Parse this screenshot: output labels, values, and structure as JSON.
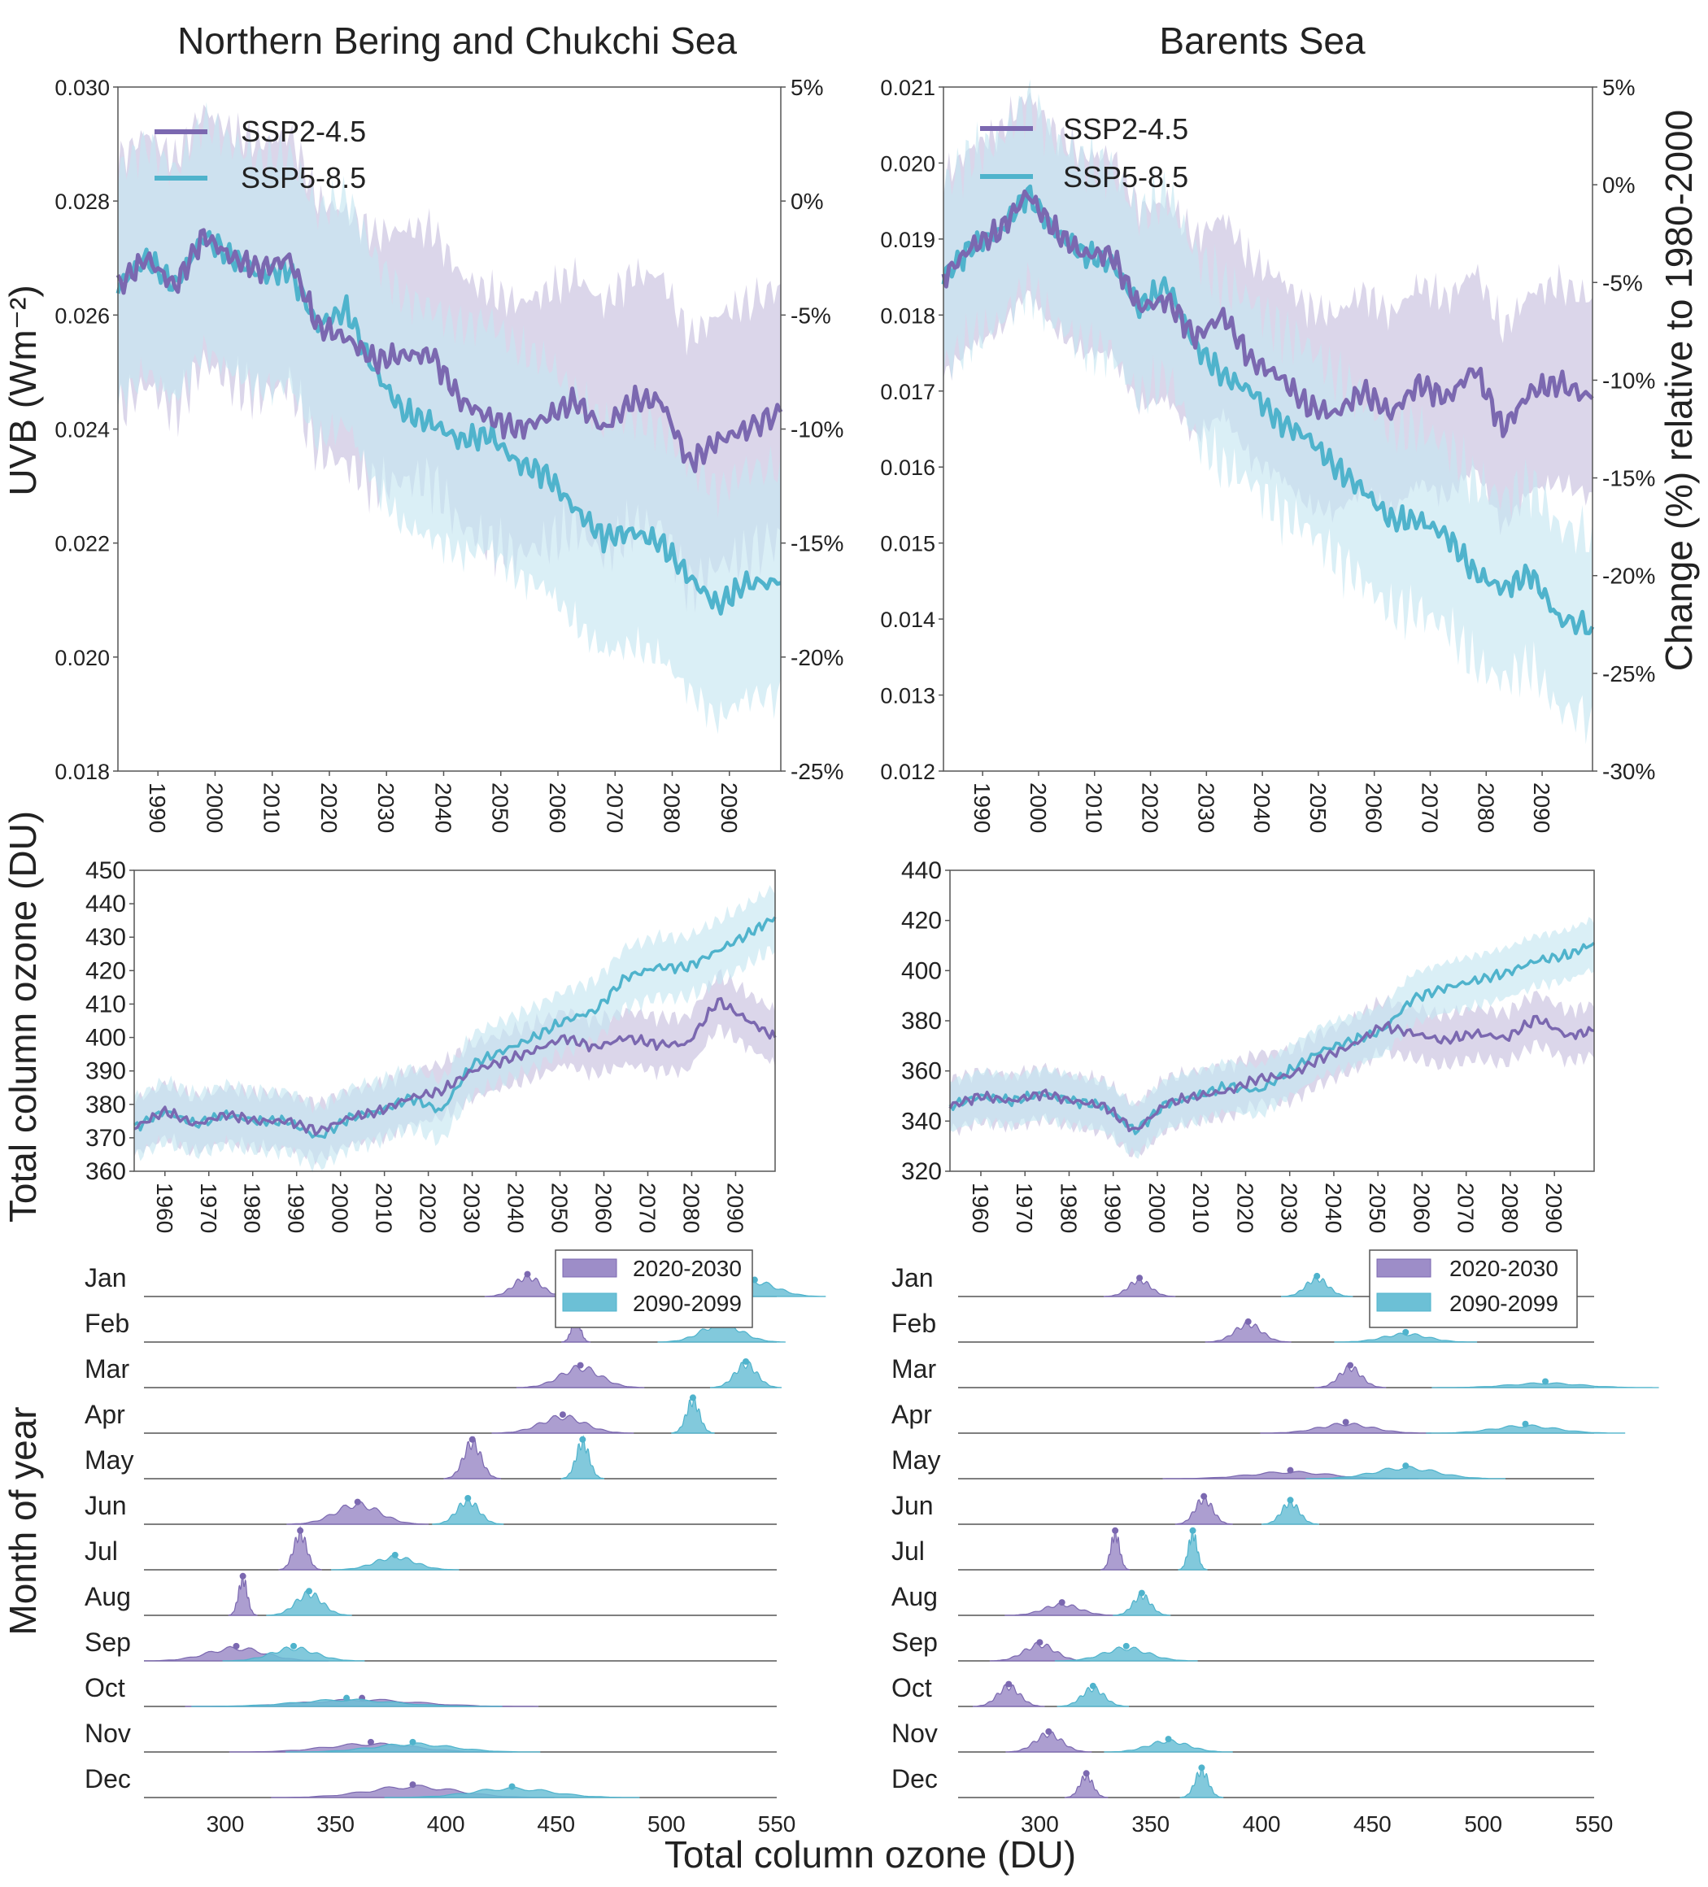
{
  "colors": {
    "ssp245": "#7b68b0",
    "ssp585": "#4fb3cc",
    "ssp245_band": "#c7c0de",
    "ssp585_band": "#c6e6f1",
    "ridge_2020": "#9d8dc8",
    "ridge_2090": "#6cc0d6",
    "axis": "#555555"
  },
  "text": {
    "left_title": "Northern Bering and Chukchi Sea",
    "right_title": "Barents Sea",
    "uvb_label": "UVB (Wm⁻²)",
    "change_label": "Change (%) relative to 1980-2000",
    "ozone_label": "Total column ozone (DU)",
    "month_label": "Month  of year",
    "bottom_xlabel": "Total column ozone (DU)",
    "legend_ssp245": "SSP2-4.5",
    "legend_ssp585": "SSP5-8.5",
    "legend_2020": "2020-2030",
    "legend_2090": "2090-2099"
  },
  "chart_data": [
    {
      "id": "uvb_bering",
      "type": "line",
      "title": "Northern Bering and Chukchi Sea",
      "ylabel": "UVB (Wm⁻²)",
      "xlim": [
        1983,
        2099
      ],
      "ylim": [
        0.018,
        0.03
      ],
      "xticks": [
        1990,
        2000,
        2010,
        2020,
        2030,
        2040,
        2050,
        2060,
        2070,
        2080,
        2090
      ],
      "yticks": [
        "0.018",
        "0.020",
        "0.022",
        "0.024",
        "0.026",
        "0.028",
        "0.030"
      ],
      "right_yticks": [
        "-25%",
        "-20%",
        "-15%",
        "-10%",
        "-5%",
        "0%",
        "5%"
      ],
      "series": [
        {
          "name": "SSP2-4.5",
          "x": [
            1983,
            1988,
            1993,
            1998,
            2003,
            2008,
            2013,
            2018,
            2023,
            2028,
            2033,
            2038,
            2043,
            2048,
            2053,
            2058,
            2063,
            2068,
            2073,
            2078,
            2083,
            2088,
            2093,
            2099
          ],
          "y": [
            0.0265,
            0.027,
            0.0265,
            0.0274,
            0.027,
            0.0268,
            0.027,
            0.0258,
            0.0256,
            0.0252,
            0.0253,
            0.0253,
            0.0245,
            0.0242,
            0.024,
            0.0242,
            0.0245,
            0.024,
            0.0245,
            0.0245,
            0.0234,
            0.0238,
            0.024,
            0.0243
          ],
          "band": 0.0022
        },
        {
          "name": "SSP5-8.5",
          "x": [
            1983,
            1988,
            1993,
            1998,
            2003,
            2008,
            2013,
            2018,
            2023,
            2028,
            2033,
            2038,
            2043,
            2048,
            2053,
            2058,
            2063,
            2068,
            2073,
            2078,
            2083,
            2088,
            2093,
            2099
          ],
          "y": [
            0.0265,
            0.027,
            0.0265,
            0.0274,
            0.027,
            0.0267,
            0.0268,
            0.0258,
            0.0261,
            0.025,
            0.0243,
            0.0241,
            0.0238,
            0.0239,
            0.0234,
            0.0232,
            0.0226,
            0.0221,
            0.0222,
            0.022,
            0.0214,
            0.0209,
            0.0213,
            0.0213
          ],
          "band": 0.002
        }
      ]
    },
    {
      "id": "uvb_barents",
      "type": "line",
      "title": "Barents Sea",
      "ylabel": "Change (%) relative to 1980-2000",
      "xlim": [
        1983,
        2099
      ],
      "ylim": [
        0.012,
        0.021
      ],
      "xticks": [
        1990,
        2000,
        2010,
        2020,
        2030,
        2040,
        2050,
        2060,
        2070,
        2080,
        2090
      ],
      "yticks": [
        "0.012",
        "0.013",
        "0.014",
        "0.015",
        "0.016",
        "0.017",
        "0.018",
        "0.019",
        "0.020",
        "0.021"
      ],
      "right_yticks": [
        "-30%",
        "-25%",
        "-20%",
        "-15%",
        "-10%",
        "-5%",
        "0%",
        "5%"
      ],
      "series": [
        {
          "name": "SSP2-4.5",
          "x": [
            1983,
            1988,
            1993,
            1998,
            2003,
            2008,
            2013,
            2018,
            2023,
            2028,
            2033,
            2038,
            2043,
            2048,
            2053,
            2058,
            2063,
            2068,
            2073,
            2078,
            2083,
            2088,
            2093,
            2099
          ],
          "y": [
            0.0185,
            0.0189,
            0.0191,
            0.0196,
            0.0191,
            0.0188,
            0.0188,
            0.0181,
            0.0182,
            0.0177,
            0.018,
            0.0174,
            0.0172,
            0.0168,
            0.0167,
            0.017,
            0.0167,
            0.0171,
            0.0169,
            0.0173,
            0.0165,
            0.017,
            0.0171,
            0.0169
          ],
          "band": 0.0013
        },
        {
          "name": "SSP5-8.5",
          "x": [
            1983,
            1988,
            1993,
            1998,
            2003,
            2008,
            2013,
            2018,
            2023,
            2028,
            2033,
            2038,
            2043,
            2048,
            2053,
            2058,
            2063,
            2068,
            2073,
            2078,
            2083,
            2088,
            2093,
            2099
          ],
          "y": [
            0.0185,
            0.0189,
            0.0191,
            0.0196,
            0.0191,
            0.0188,
            0.0187,
            0.0181,
            0.0184,
            0.0176,
            0.0172,
            0.017,
            0.0166,
            0.0164,
            0.016,
            0.0157,
            0.0153,
            0.0153,
            0.0151,
            0.0146,
            0.0144,
            0.0146,
            0.014,
            0.0139
          ],
          "band": 0.0012
        }
      ]
    },
    {
      "id": "ozone_bering",
      "type": "line",
      "ylabel": "Total column ozone (DU)",
      "xlim": [
        1953,
        2099
      ],
      "ylim": [
        360,
        450
      ],
      "xticks": [
        1960,
        1970,
        1980,
        1990,
        2000,
        2010,
        2020,
        2030,
        2040,
        2050,
        2060,
        2070,
        2080,
        2090
      ],
      "yticks": [
        360,
        370,
        380,
        390,
        400,
        410,
        420,
        430,
        440,
        450
      ],
      "series": [
        {
          "name": "SSP2-4.5",
          "x": [
            1953,
            1960,
            1967,
            1974,
            1981,
            1988,
            1995,
            2002,
            2009,
            2016,
            2023,
            2030,
            2037,
            2044,
            2051,
            2058,
            2065,
            2072,
            2079,
            2086,
            2093,
            2099
          ],
          "y": [
            373,
            378,
            374,
            377,
            375,
            375,
            372,
            376,
            378,
            382,
            384,
            390,
            393,
            396,
            400,
            397,
            400,
            398,
            398,
            411,
            405,
            400
          ],
          "band": 8
        },
        {
          "name": "SSP5-8.5",
          "x": [
            1953,
            1960,
            1967,
            1974,
            1981,
            1988,
            1995,
            2002,
            2009,
            2016,
            2023,
            2030,
            2037,
            2044,
            2051,
            2058,
            2065,
            2072,
            2079,
            2086,
            2093,
            2099
          ],
          "y": [
            373,
            378,
            374,
            377,
            375,
            375,
            370,
            376,
            378,
            382,
            378,
            392,
            396,
            400,
            405,
            408,
            418,
            421,
            421,
            426,
            431,
            436
          ],
          "band": 9
        }
      ]
    },
    {
      "id": "ozone_barents",
      "type": "line",
      "xlim": [
        1953,
        2099
      ],
      "ylim": [
        320,
        440
      ],
      "xticks": [
        1960,
        1970,
        1980,
        1990,
        2000,
        2010,
        2020,
        2030,
        2040,
        2050,
        2060,
        2070,
        2080,
        2090
      ],
      "yticks": [
        320,
        340,
        360,
        380,
        400,
        420,
        440
      ],
      "series": [
        {
          "name": "SSP2-4.5",
          "x": [
            1953,
            1960,
            1967,
            1974,
            1981,
            1988,
            1995,
            2002,
            2009,
            2016,
            2023,
            2030,
            2037,
            2044,
            2051,
            2058,
            2065,
            2072,
            2079,
            2086,
            2093,
            2099
          ],
          "y": [
            346,
            350,
            348,
            351,
            348,
            346,
            336,
            347,
            350,
            352,
            357,
            358,
            365,
            370,
            378,
            375,
            372,
            375,
            373,
            381,
            374,
            376
          ],
          "band": 10
        },
        {
          "name": "SSP5-8.5",
          "x": [
            1953,
            1960,
            1967,
            1974,
            1981,
            1988,
            1995,
            2002,
            2009,
            2016,
            2023,
            2030,
            2037,
            2044,
            2051,
            2058,
            2065,
            2072,
            2079,
            2086,
            2093,
            2099
          ],
          "y": [
            346,
            350,
            348,
            351,
            348,
            346,
            336,
            347,
            350,
            354,
            352,
            360,
            368,
            372,
            376,
            389,
            393,
            396,
            399,
            404,
            406,
            411
          ],
          "band": 10
        }
      ]
    },
    {
      "id": "ridge_bering",
      "type": "area",
      "xlim": [
        265,
        550
      ],
      "xticks": [
        300,
        350,
        400,
        450,
        500,
        550
      ],
      "months": [
        "Jan",
        "Feb",
        "Mar",
        "Apr",
        "May",
        "Jun",
        "Jul",
        "Aug",
        "Sep",
        "Oct",
        "Nov",
        "Dec"
      ],
      "series": [
        {
          "name": "2020-2030",
          "peaks": [
            437,
            459,
            461,
            453,
            412,
            360,
            334,
            308,
            305,
            362,
            366,
            385
          ],
          "widths": [
            6,
            2,
            9,
            10,
            4,
            10,
            3,
            2,
            13,
            25,
            20,
            20
          ],
          "heights": [
            0.55,
            0.65,
            0.55,
            0.45,
            1.0,
            0.55,
            1.0,
            1.0,
            0.35,
            0.18,
            0.22,
            0.3
          ]
        },
        {
          "name": "2090-2099",
          "peaks": [
            540,
            525,
            536,
            512,
            462,
            410,
            377,
            338,
            331,
            355,
            385,
            430
          ],
          "widths": [
            10,
            9,
            5,
            3,
            3,
            5,
            9,
            6,
            10,
            22,
            18,
            18
          ],
          "heights": [
            0.4,
            0.5,
            0.65,
            0.9,
            1.0,
            0.65,
            0.35,
            0.6,
            0.35,
            0.18,
            0.22,
            0.25
          ]
        }
      ]
    },
    {
      "id": "ridge_barents",
      "type": "area",
      "xlim": [
        265,
        550
      ],
      "xticks": [
        300,
        350,
        400,
        450,
        500,
        550
      ],
      "months": [
        "Jan",
        "Feb",
        "Mar",
        "Apr",
        "May",
        "Jun",
        "Jul",
        "Aug",
        "Sep",
        "Oct",
        "Nov",
        "Dec"
      ],
      "series": [
        {
          "name": "2020-2030",
          "peaks": [
            345,
            394,
            440,
            438,
            413,
            374,
            334,
            310,
            300,
            286,
            304,
            321
          ],
          "widths": [
            5,
            6,
            5,
            12,
            18,
            4,
            2,
            8,
            7,
            5,
            6,
            3
          ],
          "heights": [
            0.45,
            0.5,
            0.55,
            0.25,
            0.18,
            0.7,
            1.0,
            0.3,
            0.45,
            0.55,
            0.5,
            0.6
          ]
        },
        {
          "name": "2090-2099",
          "peaks": [
            425,
            465,
            528,
            519,
            465,
            413,
            369,
            346,
            339,
            324,
            358,
            373
          ],
          "widths": [
            5,
            10,
            16,
            14,
            14,
            4,
            2,
            4,
            10,
            5,
            9,
            3
          ],
          "heights": [
            0.5,
            0.22,
            0.12,
            0.2,
            0.3,
            0.6,
            1.0,
            0.55,
            0.35,
            0.5,
            0.3,
            0.75
          ]
        }
      ]
    }
  ]
}
